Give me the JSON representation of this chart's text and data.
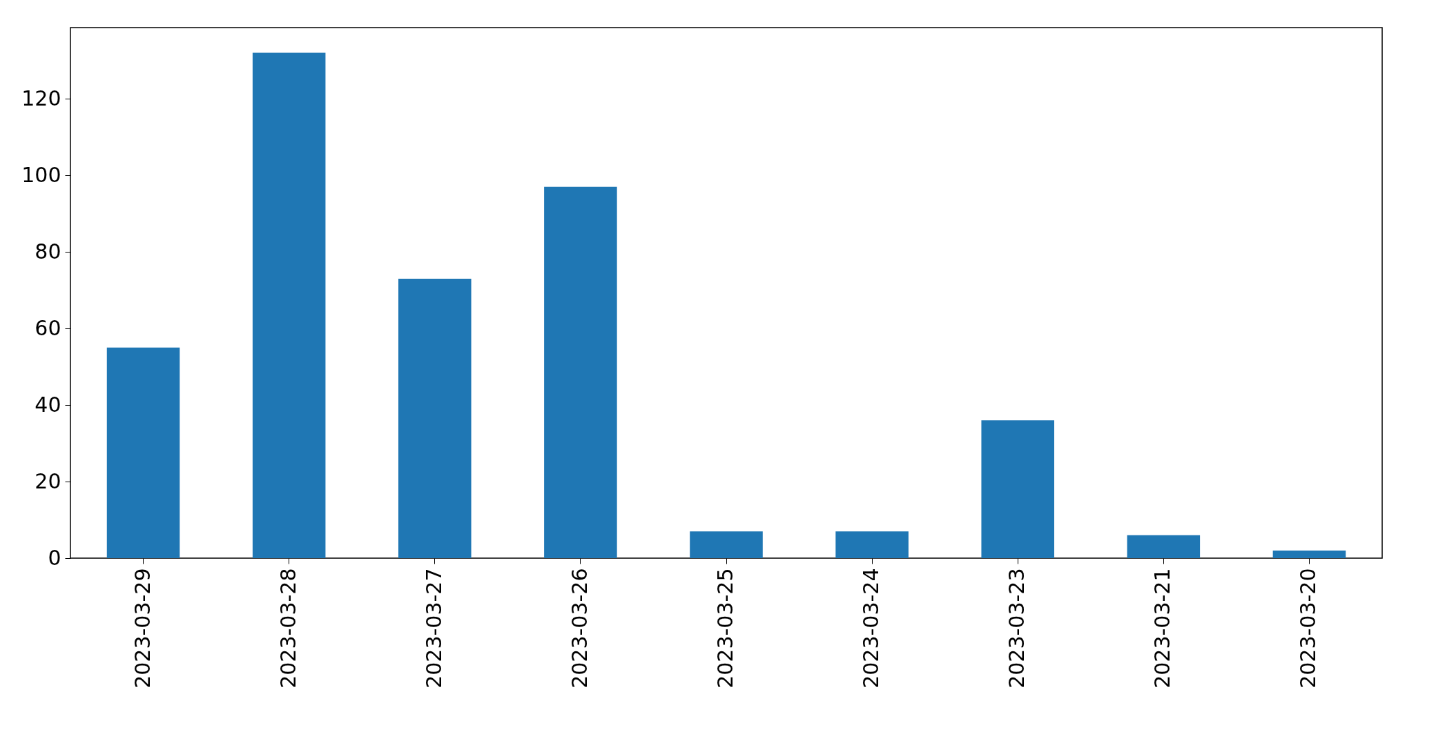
{
  "chart_data": {
    "type": "bar",
    "categories": [
      "2023-03-29",
      "2023-03-28",
      "2023-03-27",
      "2023-03-26",
      "2023-03-25",
      "2023-03-24",
      "2023-03-23",
      "2023-03-21",
      "2023-03-20"
    ],
    "values": [
      55,
      132,
      73,
      97,
      7,
      7,
      36,
      6,
      2
    ],
    "color": "#1f77b4",
    "ylim": [
      0,
      138.6
    ],
    "yticks": [
      0,
      20,
      40,
      60,
      80,
      100,
      120
    ],
    "grid": false
  }
}
